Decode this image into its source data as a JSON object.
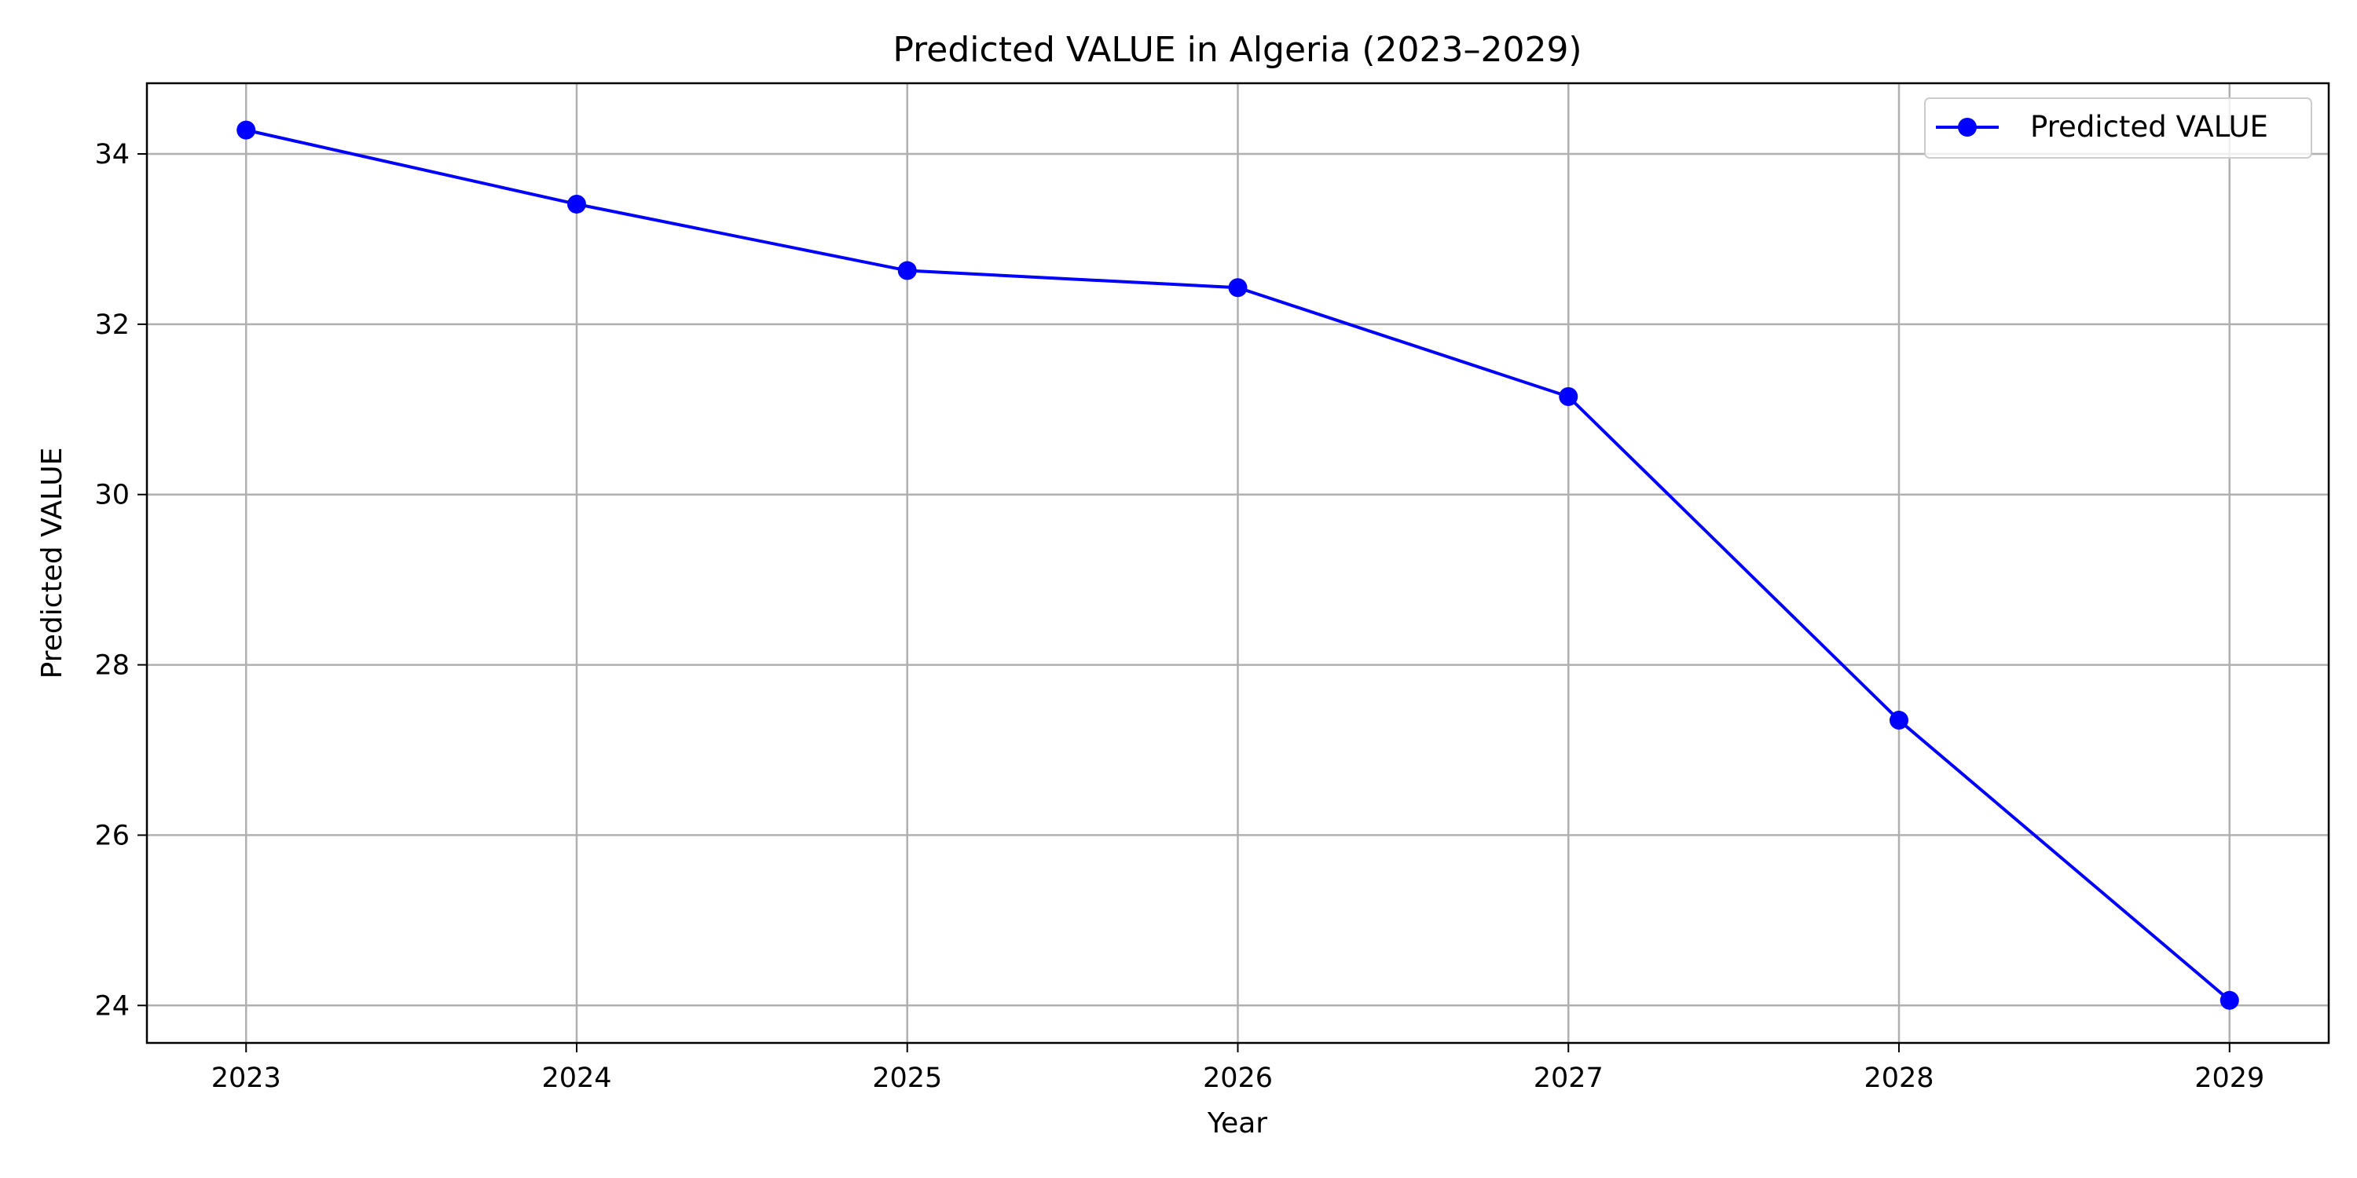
{
  "chart_data": {
    "type": "line",
    "title": "Predicted VALUE in Algeria (2023–2029)",
    "xlabel": "Year",
    "ylabel": "Predicted VALUE",
    "x": [
      2023,
      2024,
      2025,
      2026,
      2027,
      2028,
      2029
    ],
    "xlim": [
      2022.7,
      2029.3
    ],
    "ylim": [
      23.56,
      34.83
    ],
    "yticks": [
      24,
      26,
      28,
      30,
      32,
      34
    ],
    "grid": true,
    "legend_position": "top-right",
    "series": [
      {
        "name": "Predicted VALUE",
        "color": "#0000ff",
        "marker": "circle",
        "values": [
          34.28,
          33.41,
          32.63,
          32.43,
          31.15,
          27.35,
          24.06
        ]
      }
    ]
  }
}
